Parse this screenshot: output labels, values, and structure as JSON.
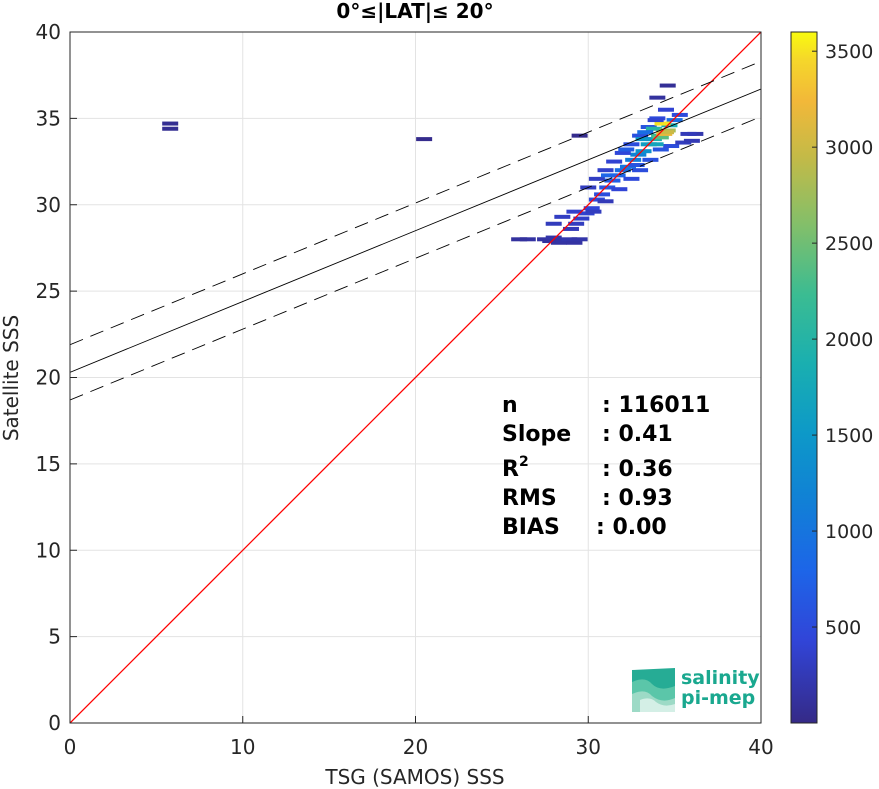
{
  "chart_data": {
    "type": "scatter",
    "title": "0°≤|LAT|≤ 20°",
    "xlabel": "TSG (SAMOS) SSS",
    "ylabel": "Satellite SSS",
    "xlim": [
      0,
      40
    ],
    "ylim": [
      0,
      40
    ],
    "xticks": [
      "0",
      "10",
      "20",
      "30",
      "40"
    ],
    "yticks": [
      "0",
      "5",
      "10",
      "15",
      "20",
      "25",
      "30",
      "35",
      "40"
    ],
    "grid": true,
    "colorbar": {
      "range": [
        0,
        3600
      ],
      "ticks": [
        "500",
        "1000",
        "1500",
        "2000",
        "2500",
        "3000",
        "3500"
      ],
      "colormap": "parula"
    },
    "identity_line": {
      "color": "#ff0000",
      "from": [
        0,
        0
      ],
      "to": [
        40,
        40
      ]
    },
    "regression": {
      "slope": 0.41,
      "intercept": 20.3,
      "band_offset": 1.6,
      "color": "#000000"
    },
    "density_points": [
      [
        5.8,
        34.4
      ],
      [
        5.8,
        34.7
      ],
      [
        20.5,
        33.8
      ],
      [
        29.5,
        34.0
      ],
      [
        27.5,
        28.0
      ],
      [
        27.8,
        27.9
      ],
      [
        28.0,
        28.1
      ],
      [
        28.3,
        27.8
      ],
      [
        28.6,
        27.9
      ],
      [
        28.9,
        28.0
      ],
      [
        29.2,
        27.8
      ],
      [
        29.5,
        28.0
      ],
      [
        29.0,
        28.6
      ],
      [
        29.3,
        28.9
      ],
      [
        29.6,
        29.2
      ],
      [
        29.9,
        29.5
      ],
      [
        30.2,
        29.8
      ],
      [
        30.5,
        30.3
      ],
      [
        30.8,
        30.6
      ],
      [
        31.1,
        31.0
      ],
      [
        31.4,
        31.4
      ],
      [
        31.7,
        31.7
      ],
      [
        32.0,
        32.0
      ],
      [
        32.3,
        32.2
      ],
      [
        32.6,
        32.6
      ],
      [
        32.9,
        32.9
      ],
      [
        33.2,
        33.1
      ],
      [
        33.5,
        33.5
      ],
      [
        33.8,
        33.8
      ],
      [
        34.1,
        34.0
      ],
      [
        34.4,
        34.3
      ],
      [
        34.7,
        34.6
      ],
      [
        35.0,
        34.9
      ],
      [
        35.3,
        35.2
      ],
      [
        30.0,
        31.0
      ],
      [
        30.5,
        31.5
      ],
      [
        31.0,
        32.0
      ],
      [
        31.5,
        32.5
      ],
      [
        32.0,
        33.0
      ],
      [
        32.5,
        33.5
      ],
      [
        33.0,
        34.0
      ],
      [
        33.5,
        34.5
      ],
      [
        34.0,
        35.0
      ],
      [
        34.5,
        35.5
      ],
      [
        34.0,
        36.2
      ],
      [
        34.6,
        36.9
      ],
      [
        31.8,
        30.9
      ],
      [
        32.5,
        31.5
      ],
      [
        33.0,
        32.0
      ],
      [
        33.6,
        32.6
      ],
      [
        34.2,
        33.2
      ],
      [
        34.8,
        33.4
      ],
      [
        35.5,
        33.6
      ],
      [
        36.2,
        34.1
      ],
      [
        35.8,
        34.1
      ],
      [
        36.0,
        33.7
      ],
      [
        31.0,
        30.2
      ],
      [
        30.3,
        29.6
      ],
      [
        33.2,
        33.8
      ],
      [
        33.8,
        34.4
      ],
      [
        34.3,
        34.7
      ],
      [
        34.6,
        34.3
      ],
      [
        34.2,
        33.9
      ],
      [
        33.9,
        33.5
      ],
      [
        26.5,
        28.0
      ],
      [
        26.0,
        28.0
      ],
      [
        28.0,
        28.9
      ],
      [
        28.5,
        29.3
      ],
      [
        29.2,
        29.6
      ],
      [
        34.4,
        34.1
      ],
      [
        34.5,
        34.2
      ],
      [
        33.9,
        34.9
      ],
      [
        33.3,
        34.2
      ],
      [
        32.2,
        33.2
      ],
      [
        32.8,
        32.3
      ],
      [
        31.2,
        31.7
      ]
    ],
    "density_values": [
      60,
      60,
      30,
      30,
      150,
      120,
      180,
      140,
      160,
      200,
      150,
      180,
      260,
      300,
      340,
      380,
      420,
      480,
      520,
      600,
      700,
      800,
      900,
      1000,
      1100,
      1200,
      1400,
      1600,
      1900,
      2200,
      2500,
      1800,
      900,
      500,
      300,
      320,
      360,
      400,
      460,
      520,
      560,
      600,
      500,
      400,
      120,
      80,
      420,
      480,
      520,
      560,
      600,
      520,
      300,
      200,
      260,
      240,
      260,
      300,
      1500,
      2000,
      3500,
      2800,
      2400,
      1700,
      150,
      120,
      280,
      320,
      360,
      3200,
      3000,
      400,
      900,
      700,
      600,
      800
    ]
  },
  "stats": {
    "n_label": "n",
    "n_value": ": 116011",
    "slope_label": "Slope",
    "slope_value": ": 0.41",
    "r2_label": "R",
    "r2_sup": "2",
    "r2_value": ": 0.36",
    "rms_label": "RMS",
    "rms_value": ": 0.93",
    "bias_label": "BIAS",
    "bias_value": ": 0.00"
  },
  "logo": {
    "line1": "salinity",
    "line2": "pi-mep"
  },
  "colors": {
    "identity": "#ff0000",
    "regression": "#000000",
    "logo": "#1aa88f"
  }
}
